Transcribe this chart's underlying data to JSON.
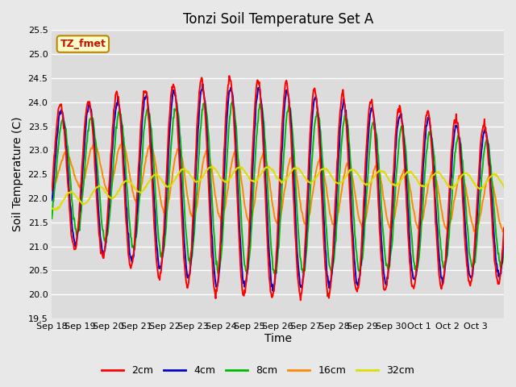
{
  "title": "Tonzi Soil Temperature Set A",
  "xlabel": "Time",
  "ylabel": "Soil Temperature (C)",
  "ylim": [
    19.5,
    25.5
  ],
  "yticks": [
    19.5,
    20.0,
    20.5,
    21.0,
    21.5,
    22.0,
    22.5,
    23.0,
    23.5,
    24.0,
    24.5,
    25.0,
    25.5
  ],
  "xtick_labels": [
    "Sep 18",
    "Sep 19",
    "Sep 20",
    "Sep 21",
    "Sep 22",
    "Sep 23",
    "Sep 24",
    "Sep 25",
    "Sep 26",
    "Sep 27",
    "Sep 28",
    "Sep 29",
    "Sep 30",
    "Oct 1",
    "Oct 2",
    "Oct 3"
  ],
  "legend_label": "TZ_fmet",
  "line_labels": [
    "2cm",
    "4cm",
    "8cm",
    "16cm",
    "32cm"
  ],
  "line_colors": [
    "#ff0000",
    "#0000cc",
    "#00bb00",
    "#ff8800",
    "#dddd00"
  ],
  "line_widths": [
    1.4,
    1.4,
    1.4,
    1.4,
    1.4
  ],
  "bg_color": "#e8e8e8",
  "plot_bg_color": "#dcdcdc",
  "grid_color": "#ffffff",
  "title_fontsize": 12,
  "axis_label_fontsize": 10,
  "tick_fontsize": 8
}
